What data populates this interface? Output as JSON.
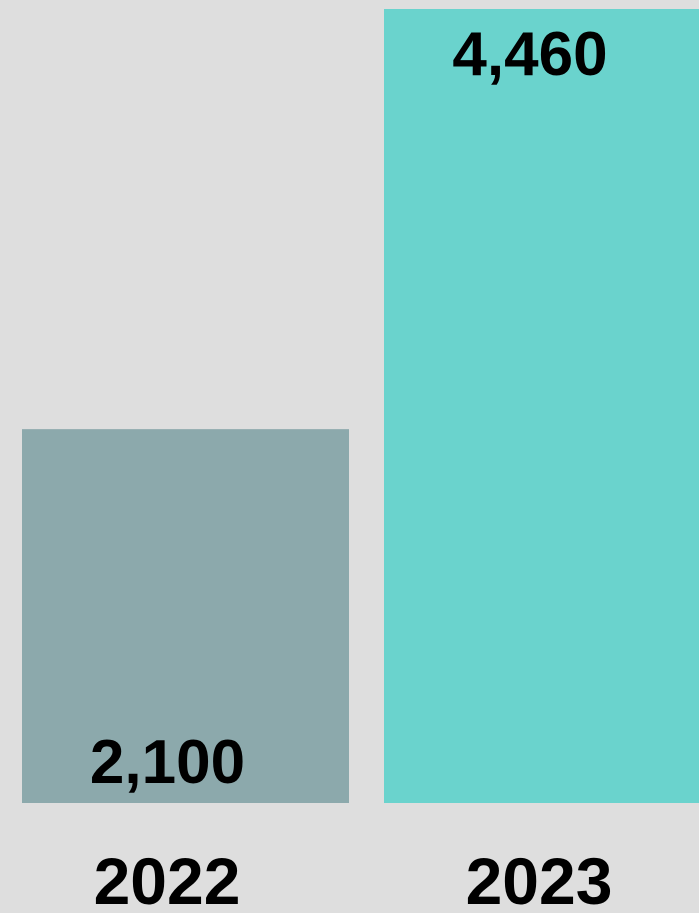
{
  "chart_data": {
    "type": "bar",
    "categories": [
      "2022",
      "2023"
    ],
    "values": [
      2100,
      4460
    ],
    "value_labels": [
      "2,100",
      "4,460"
    ],
    "colors": [
      "#8ca9ac",
      "#6ad3cd"
    ],
    "background": "#dedede",
    "title": "",
    "xlabel": "",
    "ylabel": "",
    "ylim": [
      0,
      4460
    ],
    "grid": false,
    "legend": "none"
  }
}
